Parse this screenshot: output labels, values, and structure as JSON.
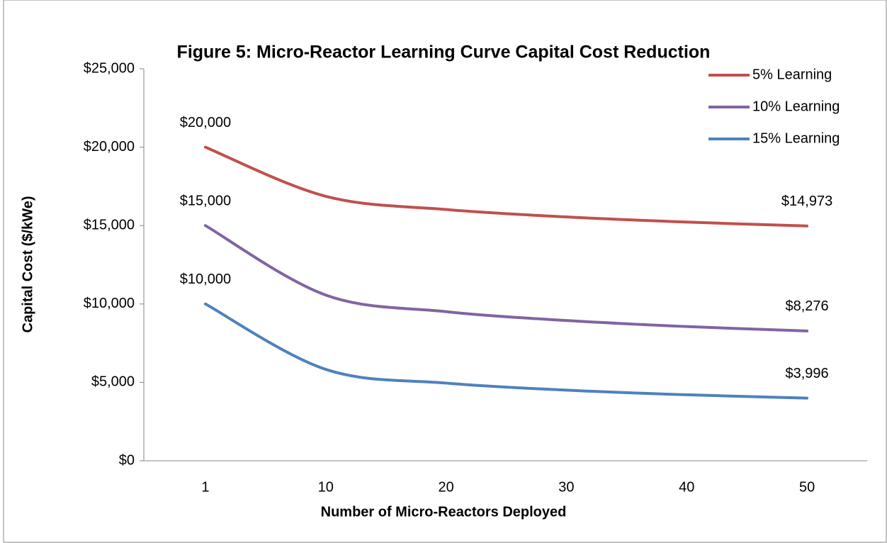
{
  "chart_data": {
    "type": "line",
    "title": "Figure 5: Micro-Reactor Learning Curve Capital Cost Reduction",
    "x_label": "Number of Micro-Reactors Deployed",
    "y_label": "Capital Cost ($/kWe)",
    "categories": [
      "1",
      "10",
      "20",
      "30",
      "40",
      "50"
    ],
    "series": [
      {
        "name": "5% Learning",
        "color": "#c0504d",
        "values": [
          20000,
          16868,
          16024,
          15550,
          15222,
          14973
        ],
        "value_labels": [
          "$20,000",
          null,
          null,
          null,
          null,
          "$14,973"
        ]
      },
      {
        "name": "10% Learning",
        "color": "#8064a2",
        "values": [
          15000,
          10569,
          9510,
          8945,
          8562,
          8276
        ],
        "value_labels": [
          "$15,000",
          null,
          null,
          null,
          null,
          "$8,276"
        ]
      },
      {
        "name": "15% Learning",
        "color": "#4f81bd",
        "values": [
          10000,
          5828,
          4953,
          4505,
          4210,
          3996
        ],
        "value_labels": [
          "$10,000",
          null,
          null,
          null,
          null,
          "$3,996"
        ]
      }
    ],
    "ylim": [
      0,
      25000
    ],
    "yticks": [
      {
        "value": 0,
        "label": "$0"
      },
      {
        "value": 5000,
        "label": "$5,000"
      },
      {
        "value": 10000,
        "label": "$10,000"
      },
      {
        "value": 15000,
        "label": "$15,000"
      },
      {
        "value": 20000,
        "label": "$20,000"
      },
      {
        "value": 25000,
        "label": "$25,000"
      }
    ],
    "grid": false,
    "smooth": true,
    "legend": "top-right"
  }
}
